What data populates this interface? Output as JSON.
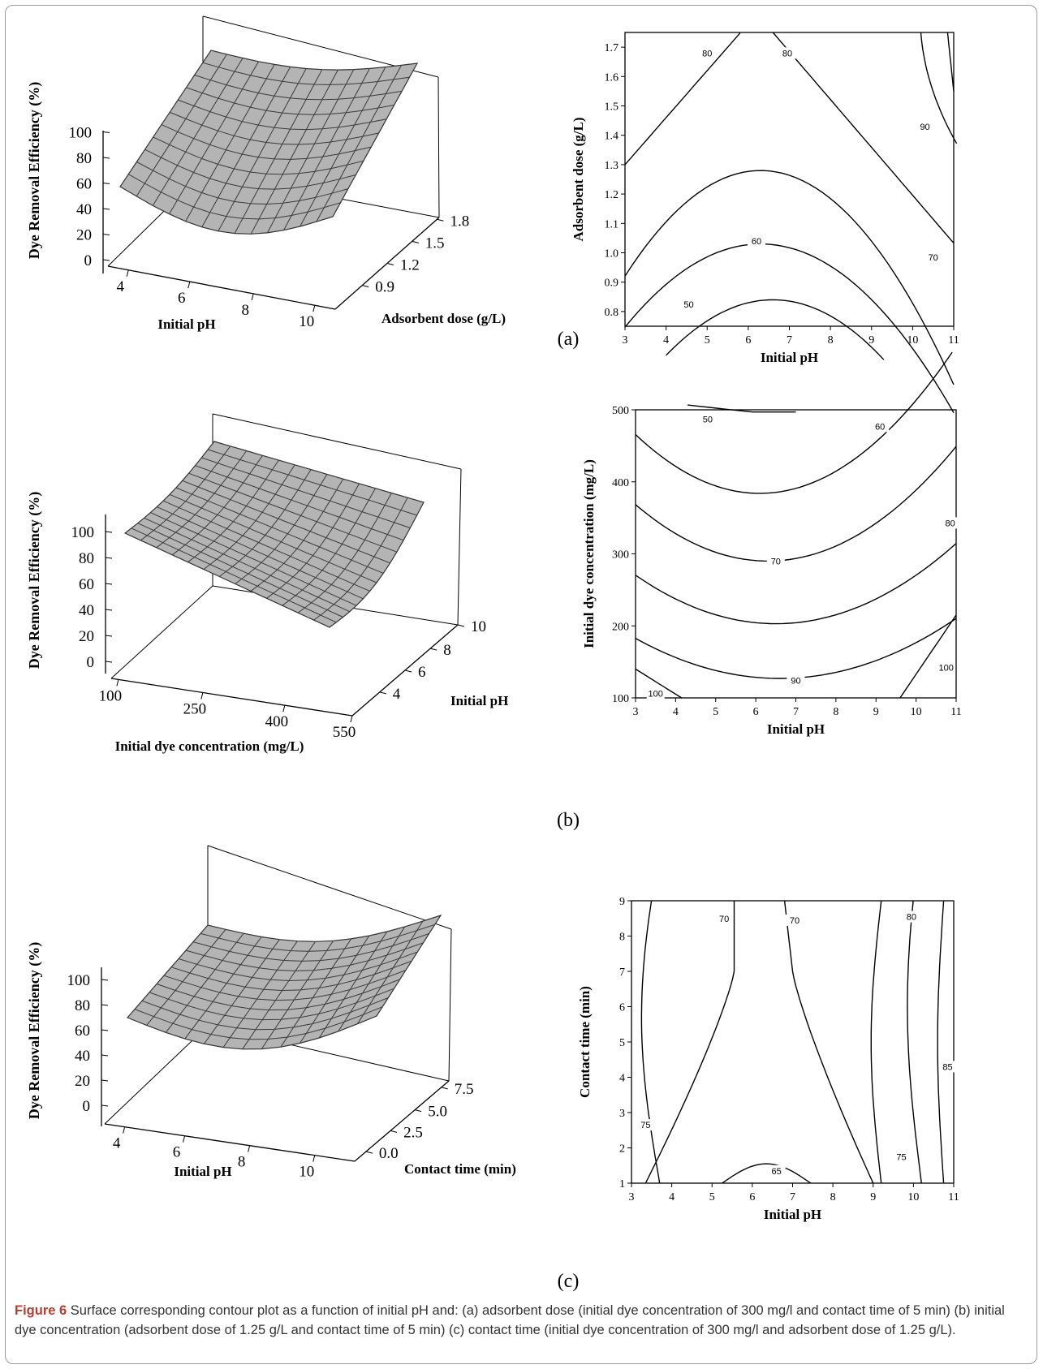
{
  "panel_labels": [
    "(a)",
    "(b)",
    "(c)"
  ],
  "caption": {
    "label": "Figure 6",
    "text": "Surface corresponding contour plot as a function of initial pH and: (a) adsorbent dose (initial dye concentration of 300 mg/l and contact time of 5 min) (b) initial dye concentration (adsorbent dose of 1.25 g/L and contact time of 5 min) (c) contact time (initial dye concentration of 300 mg/l and adsorbent dose of 1.25 g/L)."
  },
  "chart_data": [
    {
      "type": "surface",
      "panel": "(a)",
      "zlabel": "Dye Removal Efficiency (%)",
      "xlabel": "Initial pH",
      "ylabel": "Adsorbent dose (g/L)",
      "z_ticks": [
        "0",
        "20",
        "40",
        "60",
        "80",
        "100"
      ],
      "x_ticks": [
        "4",
        "6",
        "8",
        "10"
      ],
      "y_ticks": [
        "0.9",
        "1.2",
        "1.5",
        "1.8"
      ],
      "x_range": [
        3,
        11
      ],
      "y_range": [
        0.75,
        1.75
      ],
      "z_range": [
        0,
        100
      ],
      "surface_color": "#b4b4b4"
    },
    {
      "type": "contour",
      "panel": "(a)",
      "xlabel": "Initial pH",
      "ylabel": "Adsorbent dose (g/L)",
      "xlim": [
        3,
        11
      ],
      "ylim": [
        0.75,
        1.75
      ],
      "x_ticks": [
        "3",
        "4",
        "5",
        "6",
        "7",
        "8",
        "9",
        "10",
        "11"
      ],
      "y_ticks": [
        "0.8",
        "0.9",
        "1.0",
        "1.1",
        "1.2",
        "1.3",
        "1.4",
        "1.5",
        "1.6",
        "1.7"
      ],
      "contour_labels": [
        "50",
        "60",
        "70",
        "80",
        "80",
        "90"
      ],
      "levels": [
        50,
        60,
        70,
        80,
        90
      ]
    },
    {
      "type": "surface",
      "panel": "(b)",
      "zlabel": "Dye Removal Efficiency (%)",
      "xlabel": "Initial dye concentration (mg/L)",
      "ylabel": "Initial pH",
      "z_ticks": [
        "0",
        "20",
        "40",
        "60",
        "80",
        "100"
      ],
      "x_ticks": [
        "100",
        "250",
        "400",
        "550"
      ],
      "y_ticks": [
        "4",
        "6",
        "8",
        "10"
      ],
      "x_range": [
        100,
        500
      ],
      "y_range": [
        3,
        11
      ],
      "z_range": [
        0,
        100
      ],
      "surface_color": "#b4b4b4"
    },
    {
      "type": "contour",
      "panel": "(b)",
      "xlabel": "Initial pH",
      "ylabel": "Initial dye concentration (mg/L)",
      "xlim": [
        3,
        11
      ],
      "ylim": [
        100,
        500
      ],
      "x_ticks": [
        "3",
        "4",
        "5",
        "6",
        "7",
        "8",
        "9",
        "10",
        "11"
      ],
      "y_ticks": [
        "100",
        "200",
        "300",
        "400",
        "500"
      ],
      "contour_labels": [
        "50",
        "60",
        "70",
        "80",
        "90",
        "100",
        "100"
      ],
      "levels": [
        50,
        60,
        70,
        80,
        90,
        100
      ]
    },
    {
      "type": "surface",
      "panel": "(c)",
      "zlabel": "Dye Removal Efficiency (%)",
      "xlabel": "Initial pH",
      "ylabel": "Contact time (min)",
      "z_ticks": [
        "0",
        "20",
        "40",
        "60",
        "80",
        "100"
      ],
      "x_ticks": [
        "4",
        "6",
        "8",
        "10"
      ],
      "y_ticks": [
        "0.0",
        "2.5",
        "5.0",
        "7.5"
      ],
      "x_range": [
        3,
        11
      ],
      "y_range": [
        1,
        9
      ],
      "z_range": [
        0,
        100
      ],
      "surface_color": "#b4b4b4"
    },
    {
      "type": "contour",
      "panel": "(c)",
      "xlabel": "Initial pH",
      "ylabel": "Contact time (min)",
      "xlim": [
        3,
        11
      ],
      "ylim": [
        1,
        9
      ],
      "x_ticks": [
        "3",
        "4",
        "5",
        "6",
        "7",
        "8",
        "9",
        "10",
        "11"
      ],
      "y_ticks": [
        "1",
        "2",
        "3",
        "4",
        "5",
        "6",
        "7",
        "8",
        "9"
      ],
      "contour_labels": [
        "75",
        "70",
        "70",
        "80",
        "85",
        "75",
        "65"
      ],
      "levels": [
        65,
        70,
        75,
        80,
        85
      ]
    }
  ]
}
